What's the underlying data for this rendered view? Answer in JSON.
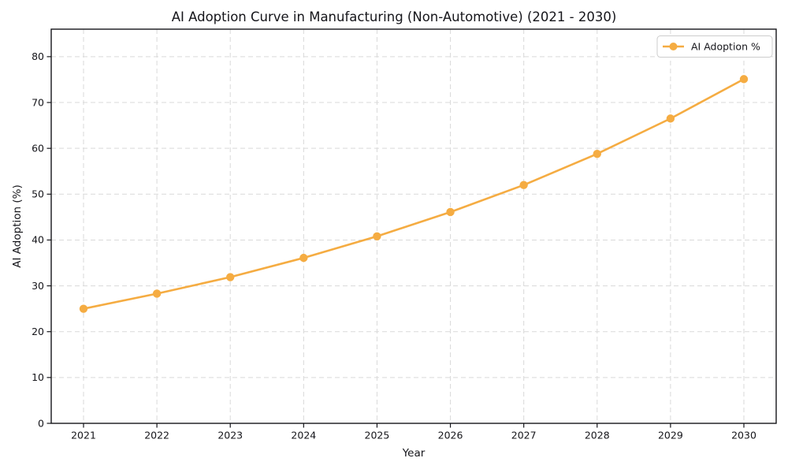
{
  "chart_data": {
    "type": "line",
    "title": "AI Adoption Curve in Manufacturing (Non-Automotive) (2021 - 2030)",
    "xlabel": "Year",
    "ylabel": "AI Adoption (%)",
    "categories": [
      "2021",
      "2022",
      "2023",
      "2024",
      "2025",
      "2026",
      "2027",
      "2028",
      "2029",
      "2030"
    ],
    "series": [
      {
        "name": "AI Adoption %",
        "color": "#F5AC42",
        "values": [
          25.0,
          28.3,
          31.9,
          36.1,
          40.8,
          46.1,
          52.0,
          58.8,
          66.5,
          75.1
        ]
      }
    ],
    "ylim": [
      0,
      86
    ],
    "yticks": [
      0,
      10,
      20,
      30,
      40,
      50,
      60,
      70,
      80
    ],
    "grid": true,
    "grid_style": "dashed",
    "legend": {
      "position": "upper right",
      "label": "AI Adoption %"
    },
    "colors": {
      "accent": "#F5AC42",
      "grid": "#D9D9D9",
      "text": "#15151A",
      "spine": "#15151A",
      "legend_border": "#CCCCCC",
      "background": "#FFFFFF"
    }
  }
}
